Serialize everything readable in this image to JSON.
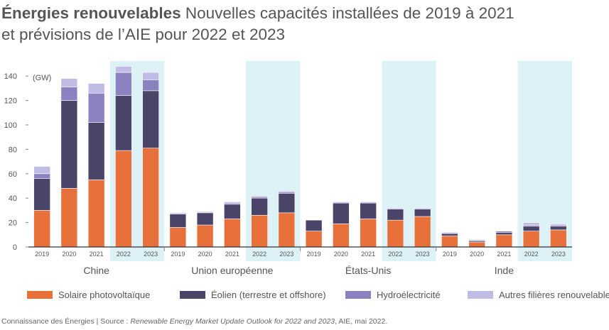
{
  "header": {
    "title_bold": "Énergies renouvelables",
    "title_rest": "Nouvelles capacités installées de 2019 à 2021",
    "title_line2": "et prévisions de l’AIE pour 2022 et 2023"
  },
  "chart_data": {
    "type": "bar",
    "stacked": true,
    "ylabel": "(GW)",
    "ylim": [
      0,
      150
    ],
    "yticks": [
      0,
      20,
      40,
      60,
      80,
      100,
      120,
      140
    ],
    "grid": false,
    "legend_position": "bottom",
    "groups": [
      {
        "name": "Chine",
        "years": [
          "2019",
          "2020",
          "2021",
          "2022",
          "2023"
        ],
        "highlight": [
          false,
          false,
          false,
          true,
          true
        ]
      },
      {
        "name": "Union européenne",
        "years": [
          "2019",
          "2020",
          "2021",
          "2022",
          "2023"
        ],
        "highlight": [
          false,
          false,
          false,
          true,
          true
        ]
      },
      {
        "name": "États-Unis",
        "years": [
          "2019",
          "2020",
          "2021",
          "2022",
          "2023"
        ],
        "highlight": [
          false,
          false,
          false,
          true,
          true
        ]
      },
      {
        "name": "Inde",
        "years": [
          "2019",
          "2020",
          "2021",
          "2022",
          "2023"
        ],
        "highlight": [
          false,
          false,
          false,
          true,
          true
        ]
      }
    ],
    "series": [
      {
        "name": "Solaire photovoltaïque",
        "color": "#E8703A",
        "values": [
          30,
          48,
          55,
          79,
          81,
          16,
          18,
          23,
          26,
          28,
          13,
          19,
          23,
          22,
          25,
          9,
          4,
          10,
          13,
          14
        ]
      },
      {
        "name": "Éolien (terrestre et offshore)",
        "color": "#4A4468",
        "values": [
          26,
          72,
          47,
          45,
          47,
          11,
          10,
          12,
          14,
          16,
          9,
          17,
          13,
          9,
          6,
          2,
          1,
          2,
          4,
          3
        ]
      },
      {
        "name": "Hydroélectricité",
        "color": "#8B82C0",
        "values": [
          4,
          11,
          24,
          19,
          9,
          0,
          0,
          1,
          1,
          1,
          0,
          0,
          0,
          0,
          0,
          0,
          0,
          1,
          1,
          1
        ]
      },
      {
        "name": "Autres filières renouvelables",
        "color": "#C0BCE6",
        "values": [
          6,
          7,
          8,
          5,
          6,
          1,
          1,
          1,
          1,
          1,
          0,
          1,
          1,
          1,
          1,
          1,
          1,
          0,
          2,
          1
        ]
      }
    ]
  },
  "source": {
    "prefix": "Connaissance des Énergies | Source : ",
    "italic": "Renewable Energy Market Update Outlook for 2022 and 2023",
    "suffix": ", AIE, mai 2022."
  },
  "colors": {
    "highlight": "#DDF2F6",
    "axis": "#333333"
  }
}
